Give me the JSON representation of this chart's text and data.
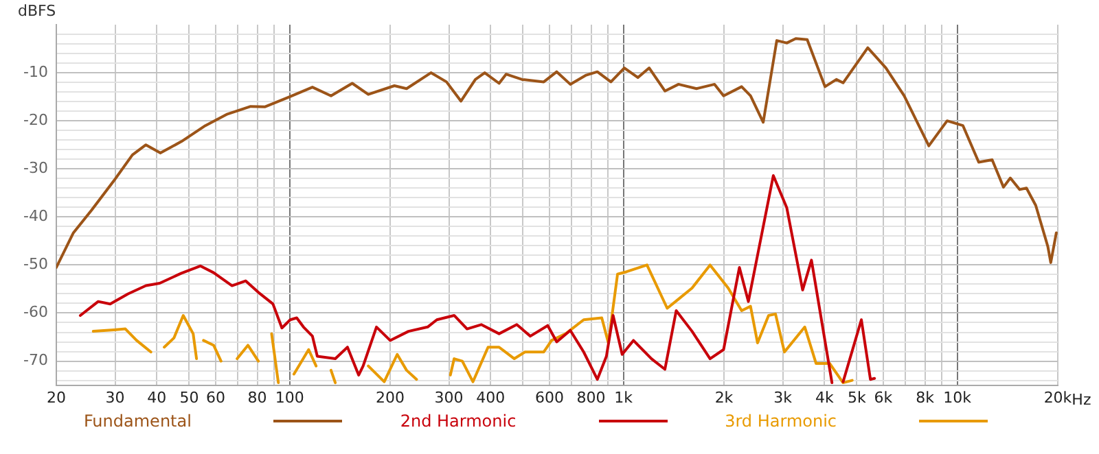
{
  "chart_data": {
    "type": "line",
    "ylabel": "dBFS",
    "log": "x",
    "grid": true,
    "legend": "bottom",
    "xlim": [
      20,
      20000
    ],
    "xticks": [
      20,
      30,
      40,
      50,
      60,
      {
        "value": 70,
        "label": null
      },
      80,
      {
        "value": 90,
        "label": null
      },
      100,
      200,
      300,
      400,
      {
        "value": 500,
        "label": null
      },
      600,
      {
        "value": 700,
        "label": null
      },
      800,
      {
        "value": 900,
        "label": null
      },
      {
        "value": 1000,
        "label": "1k"
      },
      {
        "value": 2000,
        "label": "2k"
      },
      {
        "value": 3000,
        "label": "3k"
      },
      {
        "value": 4000,
        "label": "4k"
      },
      {
        "value": 5000,
        "label": "5k"
      },
      {
        "value": 6000,
        "label": "6k"
      },
      {
        "value": 7000,
        "label": null
      },
      {
        "value": 8000,
        "label": "8k"
      },
      {
        "value": 9000,
        "label": null
      },
      {
        "value": 10000,
        "label": "10k"
      },
      {
        "value": 20000,
        "label": "20k"
      }
    ],
    "xlabel": "Hz",
    "ylim": [
      -75,
      0
    ],
    "yticks": [
      {
        "value": -2,
        "label": null
      },
      {
        "value": -4,
        "label": null
      },
      {
        "value": -6,
        "label": null
      },
      {
        "value": -8,
        "label": null
      },
      -10,
      {
        "value": -12,
        "label": null
      },
      {
        "value": -14,
        "label": null
      },
      {
        "value": -16,
        "label": null
      },
      {
        "value": -18,
        "label": null
      },
      -20,
      {
        "value": -22,
        "label": null
      },
      {
        "value": -24,
        "label": null
      },
      {
        "value": -26,
        "label": null
      },
      {
        "value": -28,
        "label": null
      },
      -30,
      {
        "value": -32,
        "label": null
      },
      {
        "value": -34,
        "label": null
      },
      {
        "value": -36,
        "label": null
      },
      {
        "value": -38,
        "label": null
      },
      -40,
      {
        "value": -42,
        "label": null
      },
      {
        "value": -44,
        "label": null
      },
      {
        "value": -46,
        "label": null
      },
      {
        "value": -48,
        "label": null
      },
      -50,
      {
        "value": -52,
        "label": null
      },
      {
        "value": -54,
        "label": null
      },
      {
        "value": -56,
        "label": null
      },
      {
        "value": -58,
        "label": null
      },
      -60,
      {
        "value": -62,
        "label": null
      },
      {
        "value": -64,
        "label": null
      },
      {
        "value": -66,
        "label": null
      },
      {
        "value": -68,
        "label": null
      },
      -70,
      {
        "value": -72,
        "label": null
      },
      {
        "value": -74,
        "label": null
      }
    ],
    "series": [
      {
        "name": "Fundamental",
        "color": "#9c5418",
        "x": [
          20,
          22.5,
          25.5,
          29.8,
          33.8,
          37.1,
          41,
          47.4,
          55.9,
          65.1,
          76.4,
          84.2,
          100,
          117,
          133,
          154,
          172,
          206,
          224,
          265,
          295,
          326,
          360,
          384,
          424,
          445,
          497,
          577,
          631,
          693,
          773,
          835,
          917,
          1006,
          1105,
          1194,
          1331,
          1462,
          1655,
          1874,
          1995,
          2259,
          2402,
          2622,
          2879,
          3085,
          3282,
          3551,
          4015,
          4342,
          4549,
          5392,
          6112,
          6931,
          8217,
          9322,
          10398,
          11593,
          12718,
          13751,
          14417,
          15367,
          16113,
          17178,
          18679,
          19054,
          19800
        ],
        "values": [
          -50.5,
          -43.3,
          -38.6,
          -32.4,
          -27.1,
          -25,
          -26.7,
          -24.3,
          -21,
          -18.6,
          -17,
          -17.1,
          -15,
          -13,
          -14.8,
          -12.2,
          -14.5,
          -12.7,
          -13.3,
          -10,
          -11.9,
          -15.9,
          -11.4,
          -10,
          -12.2,
          -10.3,
          -11.4,
          -11.9,
          -9.8,
          -12.4,
          -10.5,
          -9.8,
          -11.9,
          -9,
          -11,
          -9,
          -13.8,
          -12.4,
          -13.3,
          -12.4,
          -14.8,
          -12.9,
          -14.8,
          -20.3,
          -3.3,
          -3.8,
          -2.9,
          -3.1,
          -12.9,
          -11.4,
          -12.1,
          -4.8,
          -9,
          -14.8,
          -25.2,
          -20,
          -21,
          -28.6,
          -28.1,
          -33.8,
          -31.9,
          -34.3,
          -34,
          -37.6,
          -46.2,
          -49.5,
          -43.3
        ]
      },
      {
        "name": "2nd Harmonic",
        "color": "#c8000a",
        "x": [
          23.6,
          26.7,
          29,
          32.8,
          37.1,
          40.8,
          47.4,
          54,
          59.2,
          67.2,
          73.8,
          80.6,
          89.1,
          94.8,
          100.4,
          105,
          110,
          117,
          121,
          137,
          149,
          161,
          166,
          182,
          200,
          227,
          259,
          276,
          311,
          340,
          375,
          424,
          479,
          526,
          593,
          631,
          693,
          760,
          835,
          889,
          931,
          991,
          1071,
          1213,
          1331,
          1439,
          1605,
          1817,
          1995,
          2225,
          2367,
          2811,
          3085,
          3441,
          3657,
          4213,
          4400,
          4549,
          5160,
          5492,
          5650
        ],
        "values": [
          -60.5,
          -57.6,
          -58.1,
          -56,
          -54.3,
          -53.8,
          -51.7,
          -50.2,
          -51.6,
          -54.3,
          -53.3,
          -55.7,
          -58.1,
          -63.1,
          -61.4,
          -61,
          -62.9,
          -64.8,
          -69,
          -69.5,
          -67.1,
          -72.9,
          -71,
          -62.9,
          -65.7,
          -63.8,
          -62.9,
          -61.4,
          -60.5,
          -63.3,
          -62.4,
          -64.3,
          -62.4,
          -64.8,
          -62.6,
          -66,
          -63.6,
          -68.1,
          -73.8,
          -69,
          -60.5,
          -68.6,
          -65.7,
          -69.5,
          -71.7,
          -59.5,
          -63.8,
          -69.5,
          -67.6,
          -50.5,
          -57.6,
          -31.4,
          -38.1,
          -55.2,
          -49,
          -74.5,
          null,
          -74.3,
          -61.4,
          -73.8,
          -73.6
        ]
      },
      {
        "name": "3rd Harmonic",
        "color": "#e89a00",
        "x": [
          25.8,
          29.8,
          32.2,
          34.8,
          38.4,
          40,
          42.1,
          45,
          48,
          51.4,
          52.6,
          54,
          55.2,
          59.2,
          62.3,
          66,
          69.6,
          75,
          80.6,
          85,
          88.3,
          92.5,
          98,
          103,
          114,
          120,
          127,
          133,
          137,
          155,
          172,
          192,
          210,
          224,
          240,
          270,
          303,
          311,
          329,
          354,
          393,
          424,
          471,
          507,
          577,
          609,
          671,
          760,
          861,
          901,
          960,
          1022,
          1176,
          1352,
          1462,
          1605,
          1817,
          2059,
          2259,
          2402,
          2521,
          2721,
          2854,
          3035,
          3492,
          3776,
          4149,
          4549,
          4844
        ],
        "values": [
          -63.8,
          -63.5,
          -63.3,
          -65.7,
          -68.1,
          null,
          -67.1,
          -65.2,
          -60.5,
          -64.3,
          -69.5,
          null,
          -65.7,
          -66.7,
          -70,
          null,
          -69.5,
          -66.7,
          -70,
          null,
          -64.3,
          -74.5,
          null,
          -72.7,
          -67.6,
          -71,
          null,
          -71.9,
          -74.5,
          null,
          -71,
          -74.3,
          -68.6,
          -71.9,
          -73.8,
          null,
          -72.9,
          -69.5,
          -70,
          -74.3,
          -67.1,
          -67.1,
          -69.5,
          -68.1,
          -68.1,
          -65.7,
          -64.3,
          -61.4,
          -61,
          -66.2,
          -51.9,
          -51.4,
          -50,
          -59,
          -57.1,
          -54.8,
          -50,
          -54.8,
          -59.5,
          -58.6,
          -66.2,
          -60.5,
          -60.2,
          -68.1,
          -62.9,
          -70.5,
          -70.5,
          -74.5,
          -74
        ]
      }
    ]
  }
}
